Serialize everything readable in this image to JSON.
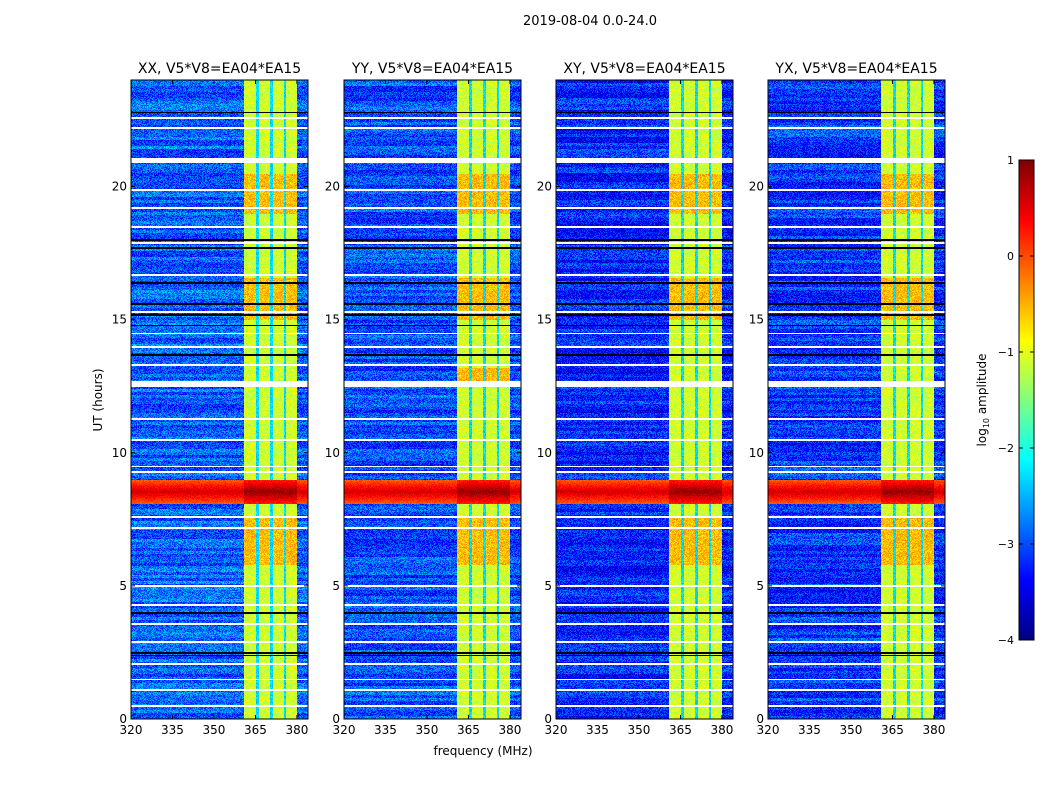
{
  "chart_data": {
    "type": "heatmap",
    "title": "2019-08-04 0.0-24.0",
    "xlabel": "frequency (MHz)",
    "ylabel": "UT (hours)",
    "xlim": [
      320,
      384
    ],
    "ylim": [
      0,
      24
    ],
    "xticks": [
      "320",
      "335",
      "350",
      "365",
      "380"
    ],
    "xtick_values": [
      320,
      335,
      350,
      365,
      380
    ],
    "yticks": [
      "0",
      "5",
      "10",
      "15",
      "20"
    ],
    "ytick_values": [
      0,
      5,
      10,
      15,
      20
    ],
    "panels": [
      {
        "title": "XX, V5*V8=EA04*EA15",
        "background_level": -2.9
      },
      {
        "title": "YY, V5*V8=EA04*EA15",
        "background_level": -3.0
      },
      {
        "title": "XY, V5*V8=EA04*EA15",
        "background_level": -3.2
      },
      {
        "title": "YX, V5*V8=EA04*EA15",
        "background_level": -3.1
      }
    ],
    "band_mhz": [
      360.5,
      380
    ],
    "band_level": -1.1,
    "channel_edges_mhz": [
      365.5,
      370.5,
      375.5
    ],
    "rfi_event_ut": [
      8.1,
      9.0
    ],
    "rfi_level": 0.6,
    "flagged_rows_ut": [
      0.5,
      1.1,
      1.5,
      2.1,
      2.9,
      3.6,
      4.3,
      5.0,
      7.2,
      7.6,
      9.3,
      9.5,
      10.5,
      11.3,
      12.6,
      13.3,
      14.0,
      14.5,
      15.3,
      16.7,
      17.9,
      18.5,
      19.2,
      19.9,
      21.0,
      22.2,
      22.6
    ],
    "dark_rows_ut": [
      2.4,
      2.5,
      4.0,
      13.7,
      14.8,
      15.2,
      15.6,
      16.4,
      17.7,
      18.0,
      22.8
    ],
    "colorbar": {
      "label": "log10 amplitude",
      "label_base": "log",
      "label_sub": "10",
      "label_rest": " amplitude",
      "range": [
        -4,
        1
      ],
      "ticks": [
        "1",
        "0",
        "−1",
        "−2",
        "−3",
        "−4"
      ],
      "tick_values": [
        1,
        0,
        -1,
        -2,
        -3,
        -4
      ]
    }
  }
}
